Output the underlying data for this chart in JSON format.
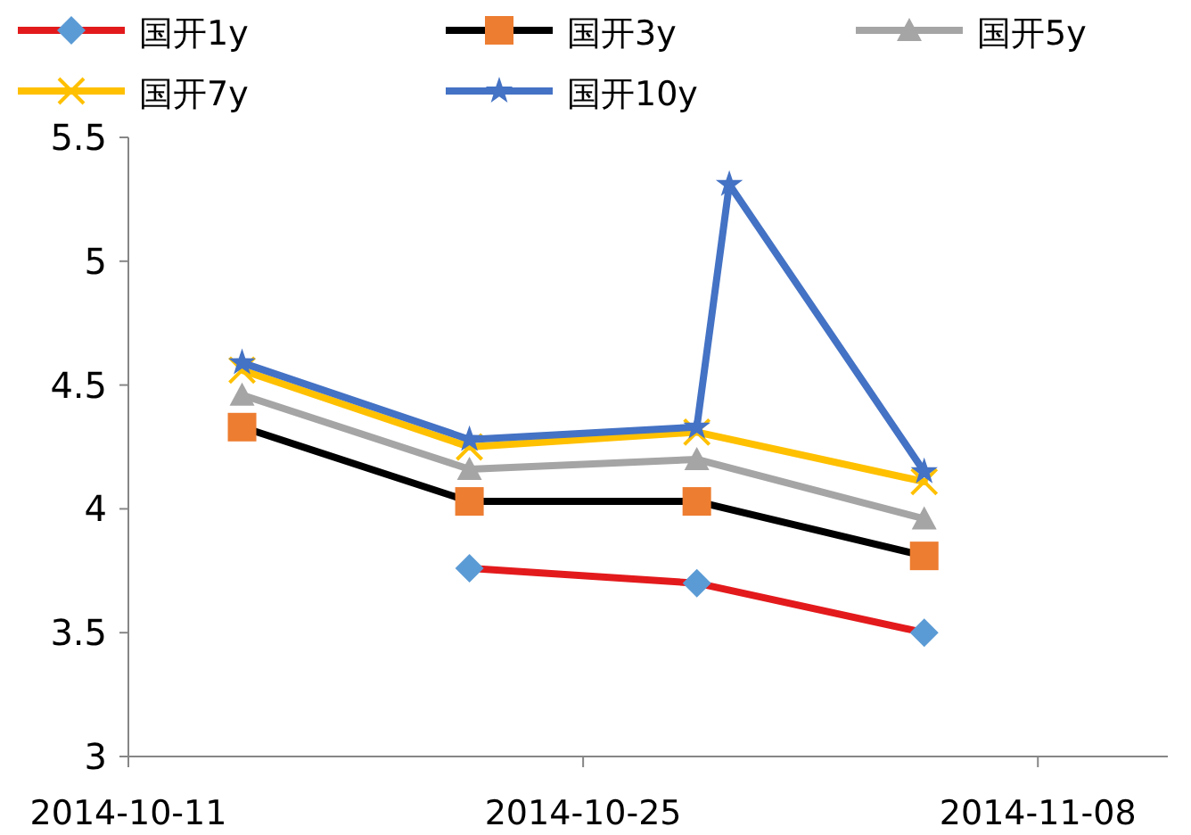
{
  "chart_data": {
    "type": "line",
    "x": [
      "2014-10-14T12:00",
      "2014-10-21T12:00",
      "2014-10-28T12:00",
      "2014-11-04T12:00"
    ],
    "series": [
      {
        "name": "国开1y",
        "color": "#e31a1c",
        "colors": [
          "#5b9bd5",
          "#5b9bd5",
          "#5b9bd5",
          "#5b9bd5"
        ],
        "marker": "diamond",
        "values": [
          null,
          3.76,
          3.7,
          3.5
        ]
      },
      {
        "name": "国开3y",
        "color": "#000000",
        "colors": [
          "#ed7d31",
          "#ed7d31",
          "#ed7d31",
          "#ed7d31"
        ],
        "marker": "square",
        "values": [
          4.33,
          4.03,
          4.03,
          3.81
        ]
      },
      {
        "name": "国开5y",
        "color": "#a5a5a5",
        "marker": "triangle",
        "values": [
          4.46,
          4.16,
          4.2,
          3.96
        ]
      },
      {
        "name": "国开7y",
        "color": "#ffc000",
        "marker": "cross",
        "values": [
          4.56,
          4.25,
          4.31,
          4.11
        ]
      },
      {
        "name": "国开10y",
        "color": "#4472c4",
        "marker": "star",
        "x": [
          "2014-10-14T12:00",
          "2014-10-21T12:00",
          "2014-10-28T12:00",
          "2014-10-29T12:00",
          "2014-11-04T12:00"
        ],
        "values": [
          4.59,
          4.28,
          4.33,
          5.31,
          4.15
        ]
      }
    ],
    "xlim": [
      "2014-10-11",
      "2014-11-12"
    ],
    "xticks": [
      {
        "value": "2014-10-11",
        "label": "2014-10-11"
      },
      {
        "value": "2014-10-25",
        "label": "2014-10-25"
      },
      {
        "value": "2014-11-08",
        "label": "2014-11-08"
      }
    ],
    "ylim": [
      3,
      5.5
    ],
    "yticks": [
      3,
      3.5,
      4,
      4.5,
      5,
      5.5
    ],
    "grid": false,
    "legend": "top"
  }
}
